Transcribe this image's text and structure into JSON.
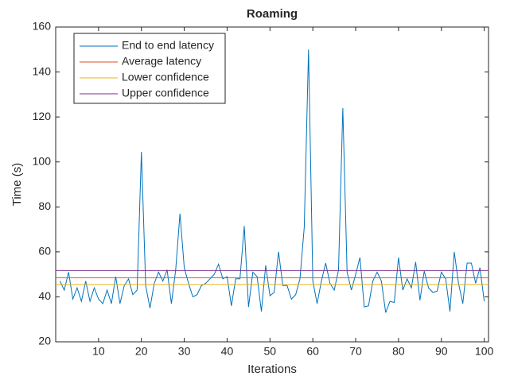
{
  "chart_data": {
    "type": "line",
    "title": "Roaming",
    "xlabel": "Iterations",
    "ylabel": "Time (s)",
    "x": [
      1,
      2,
      3,
      4,
      5,
      6,
      7,
      8,
      9,
      10,
      11,
      12,
      13,
      14,
      15,
      16,
      17,
      18,
      19,
      20,
      21,
      22,
      23,
      24,
      25,
      26,
      27,
      28,
      29,
      30,
      31,
      32,
      33,
      34,
      35,
      36,
      37,
      38,
      39,
      40,
      41,
      42,
      43,
      44,
      45,
      46,
      47,
      48,
      49,
      50,
      51,
      52,
      53,
      54,
      55,
      56,
      57,
      58,
      59,
      60,
      61,
      62,
      63,
      64,
      65,
      66,
      67,
      68,
      69,
      70,
      71,
      72,
      73,
      74,
      75,
      76,
      77,
      78,
      79,
      80,
      81,
      82,
      83,
      84,
      85,
      86,
      87,
      88,
      89,
      90,
      91,
      92,
      93,
      94,
      95,
      96,
      97,
      98,
      99,
      100
    ],
    "series": [
      {
        "name": "End to end latency",
        "color": "#0072bd",
        "values": [
          47,
          43,
          51,
          39,
          44,
          38,
          47,
          38,
          44,
          39,
          37,
          43,
          37,
          49,
          37,
          45,
          48,
          41,
          43,
          104.5,
          45,
          35,
          46,
          51,
          47,
          52,
          37,
          52,
          77,
          53,
          46,
          40,
          41,
          45,
          46,
          48,
          50,
          54.5,
          48,
          49,
          36,
          48,
          48,
          71.5,
          35.5,
          51,
          49,
          33.5,
          54,
          40.5,
          42,
          60,
          45,
          45,
          39,
          41,
          48,
          71,
          150,
          47,
          37,
          47,
          55,
          46,
          43,
          52,
          124,
          51,
          43,
          50,
          57.5,
          35.5,
          36,
          47,
          51,
          47,
          33,
          38,
          37.5,
          57.5,
          43,
          48,
          44,
          55.5,
          38.5,
          51.5,
          44,
          42,
          42.5,
          51,
          48,
          33.5,
          60,
          46,
          37,
          55,
          55,
          46,
          53,
          38
        ]
      },
      {
        "name": "Average latency",
        "color": "#d95319",
        "value": 48.5
      },
      {
        "name": "Lower confidence",
        "color": "#edb120",
        "value": 45.5
      },
      {
        "name": "Upper confidence",
        "color": "#7e2f8e",
        "value": 51.7
      }
    ],
    "xlim": [
      0,
      101
    ],
    "ylim": [
      20,
      160
    ],
    "xticks": [
      10,
      20,
      30,
      40,
      50,
      60,
      70,
      80,
      90,
      100
    ],
    "yticks": [
      20,
      40,
      60,
      80,
      100,
      120,
      140,
      160
    ],
    "legend": "upper left"
  }
}
